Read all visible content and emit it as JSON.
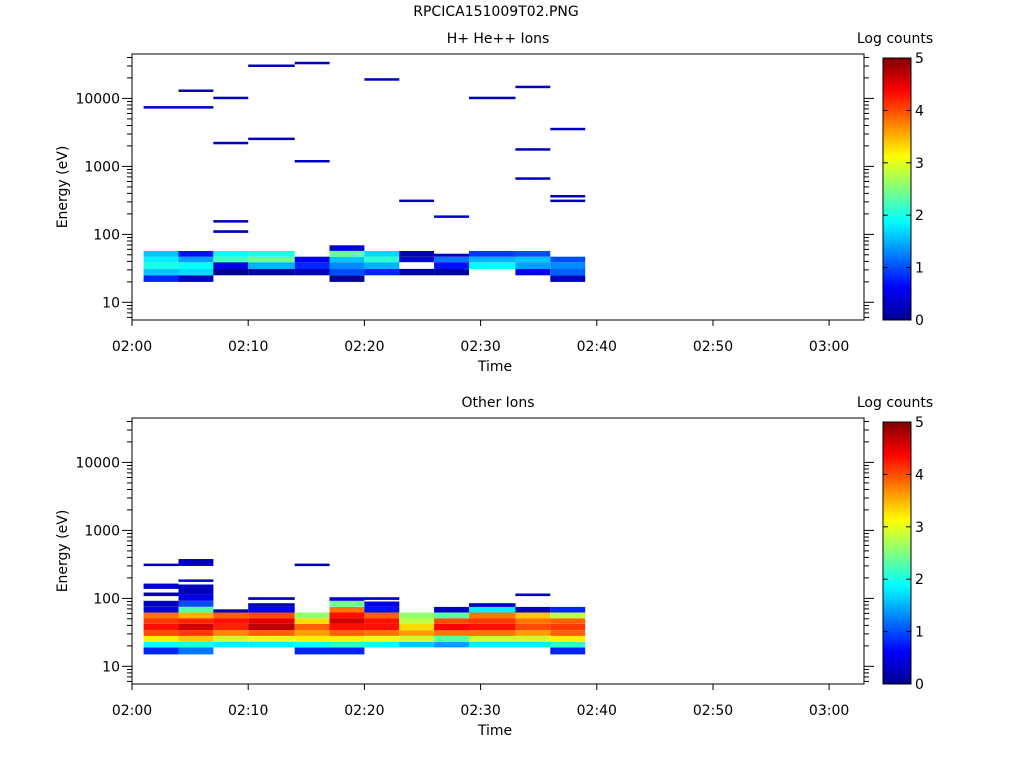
{
  "page_title": "RPCICA151009T02.PNG",
  "chart_data": [
    {
      "type": "heatmap",
      "title": "H+ He++ Ions",
      "xlabel": "Time",
      "ylabel": "Energy (eV)",
      "yscale": "log",
      "xlim": [
        "02:00",
        "03:03"
      ],
      "ylim": [
        5.5,
        45000
      ],
      "xticks": [
        "02:00",
        "02:10",
        "02:20",
        "02:30",
        "02:40",
        "02:50",
        "03:00"
      ],
      "yticks": [
        "10",
        "100",
        "1000",
        "10000"
      ],
      "colorbar": {
        "label": "Log counts",
        "min": 0,
        "max": 5,
        "ticks": [
          "0",
          "1",
          "2",
          "3",
          "4",
          "5"
        ]
      },
      "columns": [
        {
          "t0": "02:01",
          "t1": "02:04",
          "cells": [
            [
              20,
              25,
              0.8
            ],
            [
              25,
              31,
              1.6
            ],
            [
              31,
              39,
              2.0
            ],
            [
              39,
              47,
              1.8
            ],
            [
              47,
              57,
              1.6
            ],
            [
              7200,
              7700,
              0.3
            ]
          ]
        },
        {
          "t0": "02:04",
          "t1": "02:07",
          "cells": [
            [
              20,
              25,
              0.3
            ],
            [
              25,
              31,
              1.7
            ],
            [
              31,
              39,
              1.9
            ],
            [
              39,
              47,
              1.4
            ],
            [
              47,
              57,
              0.7
            ],
            [
              7200,
              7700,
              0.3
            ],
            [
              12500,
              13500,
              0.3
            ]
          ]
        },
        {
          "t0": "02:07",
          "t1": "02:10",
          "cells": [
            [
              25,
              31,
              0.1
            ],
            [
              31,
              39,
              0.5
            ],
            [
              39,
              47,
              2.2
            ],
            [
              47,
              57,
              1.9
            ],
            [
              105,
              115,
              0.3
            ],
            [
              150,
              162,
              0.3
            ],
            [
              2150,
              2300,
              0.3
            ],
            [
              9800,
              10600,
              0.3
            ]
          ]
        },
        {
          "t0": "02:10",
          "t1": "02:14",
          "cells": [
            [
              25,
              31,
              0.2
            ],
            [
              31,
              39,
              1.5
            ],
            [
              39,
              47,
              2.4
            ],
            [
              47,
              57,
              2.0
            ],
            [
              2480,
              2650,
              0.3
            ],
            [
              29000,
              31500,
              0.3
            ]
          ]
        },
        {
          "t0": "02:14",
          "t1": "02:17",
          "cells": [
            [
              25,
              31,
              0.3
            ],
            [
              31,
              39,
              0.8
            ],
            [
              39,
              47,
              0.5
            ],
            [
              1150,
              1240,
              0.3
            ],
            [
              32000,
              34500,
              0.3
            ]
          ]
        },
        {
          "t0": "02:17",
          "t1": "02:20",
          "cells": [
            [
              20,
              25,
              0.1
            ],
            [
              25,
              31,
              1.0
            ],
            [
              31,
              39,
              1.3
            ],
            [
              39,
              47,
              1.6
            ],
            [
              47,
              57,
              2.4
            ],
            [
              57,
              69,
              0.4
            ]
          ]
        },
        {
          "t0": "02:20",
          "t1": "02:23",
          "cells": [
            [
              25,
              31,
              0.8
            ],
            [
              31,
              39,
              1.5
            ],
            [
              39,
              47,
              2.1
            ],
            [
              47,
              57,
              1.7
            ],
            [
              18500,
              19800,
              0.3
            ]
          ]
        },
        {
          "t0": "02:23",
          "t1": "02:26",
          "cells": [
            [
              25,
              31,
              0.2
            ],
            [
              39,
              47,
              0.5
            ],
            [
              47,
              57,
              0.3
            ],
            [
              300,
              325,
              0.3
            ]
          ]
        },
        {
          "t0": "02:26",
          "t1": "02:29",
          "cells": [
            [
              25,
              31,
              0.2
            ],
            [
              31,
              39,
              0.7
            ],
            [
              39,
              47,
              1.2
            ],
            [
              47,
              52,
              0.3
            ],
            [
              175,
              190,
              0.4
            ]
          ]
        },
        {
          "t0": "02:29",
          "t1": "02:33",
          "cells": [
            [
              31,
              39,
              1.9
            ],
            [
              39,
              47,
              1.5
            ],
            [
              47,
              57,
              0.9
            ],
            [
              9800,
              10600,
              0.3
            ]
          ]
        },
        {
          "t0": "02:33",
          "t1": "02:36",
          "cells": [
            [
              25,
              31,
              0.6
            ],
            [
              31,
              39,
              1.4
            ],
            [
              39,
              47,
              1.6
            ],
            [
              47,
              57,
              1.0
            ],
            [
              640,
              690,
              0.3
            ],
            [
              1720,
              1850,
              0.3
            ],
            [
              14300,
              15400,
              0.3
            ]
          ]
        },
        {
          "t0": "02:36",
          "t1": "02:39",
          "cells": [
            [
              20,
              25,
              0.3
            ],
            [
              25,
              31,
              1.1
            ],
            [
              31,
              39,
              1.3
            ],
            [
              39,
              47,
              1.0
            ],
            [
              300,
              325,
              0.3
            ],
            [
              355,
              380,
              0.3
            ],
            [
              3450,
              3700,
              0.3
            ]
          ]
        }
      ]
    },
    {
      "type": "heatmap",
      "title": "Other Ions",
      "xlabel": "Time",
      "ylabel": "Energy (eV)",
      "yscale": "log",
      "xlim": [
        "02:00",
        "03:03"
      ],
      "ylim": [
        5.5,
        45000
      ],
      "xticks": [
        "02:00",
        "02:10",
        "02:20",
        "02:30",
        "02:40",
        "02:50",
        "03:00"
      ],
      "yticks": [
        "10",
        "100",
        "1000",
        "10000"
      ],
      "colorbar": {
        "label": "Log counts",
        "min": 0,
        "max": 5,
        "ticks": [
          "0",
          "1",
          "2",
          "3",
          "4",
          "5"
        ]
      },
      "columns": [
        {
          "t0": "02:01",
          "t1": "02:04",
          "cells": [
            [
              15,
              19,
              0.8
            ],
            [
              19,
              23,
              1.9
            ],
            [
              23,
              28,
              3.2
            ],
            [
              28,
              34,
              4.0
            ],
            [
              34,
              42,
              4.3
            ],
            [
              42,
              51,
              4.1
            ],
            [
              51,
              62,
              3.8
            ],
            [
              62,
              75,
              0.5
            ],
            [
              75,
              92,
              0.3
            ],
            [
              108,
              122,
              0.3
            ],
            [
              138,
              165,
              0.3
            ],
            [
              300,
              325,
              0.3
            ]
          ]
        },
        {
          "t0": "02:04",
          "t1": "02:07",
          "cells": [
            [
              15,
              19,
              1.2
            ],
            [
              19,
              23,
              2.0
            ],
            [
              23,
              28,
              3.4
            ],
            [
              28,
              34,
              4.1
            ],
            [
              34,
              42,
              4.6
            ],
            [
              42,
              51,
              4.2
            ],
            [
              51,
              62,
              3.5
            ],
            [
              62,
              75,
              2.3
            ],
            [
              75,
              92,
              1.0
            ],
            [
              92,
              115,
              0.5
            ],
            [
              115,
              160,
              0.3
            ],
            [
              175,
              190,
              0.3
            ],
            [
              300,
              380,
              0.3
            ]
          ]
        },
        {
          "t0": "02:07",
          "t1": "02:10",
          "cells": [
            [
              19,
              23,
              1.8
            ],
            [
              23,
              28,
              2.9
            ],
            [
              28,
              34,
              3.7
            ],
            [
              34,
              42,
              4.2
            ],
            [
              42,
              51,
              4.3
            ],
            [
              51,
              62,
              3.9
            ],
            [
              62,
              69,
              0.3
            ]
          ]
        },
        {
          "t0": "02:10",
          "t1": "02:14",
          "cells": [
            [
              19,
              23,
              1.8
            ],
            [
              23,
              28,
              3.0
            ],
            [
              28,
              34,
              3.9
            ],
            [
              34,
              42,
              4.7
            ],
            [
              42,
              51,
              4.5
            ],
            [
              51,
              62,
              4.0
            ],
            [
              62,
              75,
              0.6
            ],
            [
              75,
              85,
              0.3
            ],
            [
              95,
              104,
              0.3
            ]
          ]
        },
        {
          "t0": "02:14",
          "t1": "02:17",
          "cells": [
            [
              15,
              19,
              0.8
            ],
            [
              19,
              23,
              1.9
            ],
            [
              23,
              28,
              3.2
            ],
            [
              28,
              34,
              3.6
            ],
            [
              34,
              42,
              3.9
            ],
            [
              42,
              51,
              3.3
            ],
            [
              51,
              62,
              2.6
            ],
            [
              300,
              325,
              0.3
            ]
          ]
        },
        {
          "t0": "02:17",
          "t1": "02:20",
          "cells": [
            [
              15,
              19,
              0.8
            ],
            [
              19,
              23,
              2.1
            ],
            [
              23,
              28,
              3.2
            ],
            [
              28,
              34,
              3.9
            ],
            [
              34,
              42,
              4.3
            ],
            [
              42,
              51,
              4.6
            ],
            [
              51,
              62,
              4.3
            ],
            [
              62,
              75,
              3.8
            ],
            [
              75,
              92,
              2.4
            ],
            [
              92,
              104,
              0.4
            ]
          ]
        },
        {
          "t0": "02:20",
          "t1": "02:23",
          "cells": [
            [
              19,
              23,
              1.9
            ],
            [
              23,
              28,
              3.0
            ],
            [
              28,
              34,
              3.8
            ],
            [
              34,
              42,
              4.3
            ],
            [
              42,
              51,
              4.3
            ],
            [
              51,
              62,
              3.9
            ],
            [
              62,
              75,
              0.7
            ],
            [
              75,
              90,
              0.5
            ],
            [
              95,
              104,
              0.3
            ]
          ]
        },
        {
          "t0": "02:23",
          "t1": "02:26",
          "cells": [
            [
              19,
              23,
              1.6
            ],
            [
              23,
              28,
              2.9
            ],
            [
              28,
              34,
              3.6
            ],
            [
              34,
              42,
              3.3
            ],
            [
              42,
              51,
              2.8
            ],
            [
              51,
              62,
              2.6
            ]
          ]
        },
        {
          "t0": "02:26",
          "t1": "02:29",
          "cells": [
            [
              19,
              23,
              1.4
            ],
            [
              23,
              28,
              2.3
            ],
            [
              28,
              34,
              3.8
            ],
            [
              34,
              42,
              4.4
            ],
            [
              42,
              51,
              4.0
            ],
            [
              51,
              62,
              2.3
            ],
            [
              62,
              75,
              0.3
            ]
          ]
        },
        {
          "t0": "02:29",
          "t1": "02:33",
          "cells": [
            [
              19,
              23,
              1.8
            ],
            [
              23,
              28,
              2.9
            ],
            [
              28,
              34,
              3.8
            ],
            [
              34,
              42,
              4.3
            ],
            [
              42,
              51,
              4.1
            ],
            [
              51,
              62,
              3.8
            ],
            [
              62,
              75,
              1.8
            ],
            [
              75,
              85,
              0.3
            ]
          ]
        },
        {
          "t0": "02:33",
          "t1": "02:36",
          "cells": [
            [
              19,
              23,
              1.8
            ],
            [
              23,
              28,
              2.9
            ],
            [
              28,
              34,
              3.6
            ],
            [
              34,
              42,
              4.0
            ],
            [
              42,
              51,
              3.8
            ],
            [
              51,
              62,
              3.4
            ],
            [
              62,
              75,
              0.3
            ],
            [
              108,
              118,
              0.3
            ]
          ]
        },
        {
          "t0": "02:36",
          "t1": "02:39",
          "cells": [
            [
              15,
              19,
              0.8
            ],
            [
              19,
              23,
              2.1
            ],
            [
              23,
              28,
              3.2
            ],
            [
              28,
              34,
              3.9
            ],
            [
              34,
              42,
              4.1
            ],
            [
              42,
              51,
              3.9
            ],
            [
              51,
              62,
              2.8
            ],
            [
              62,
              75,
              0.8
            ]
          ]
        }
      ]
    }
  ]
}
